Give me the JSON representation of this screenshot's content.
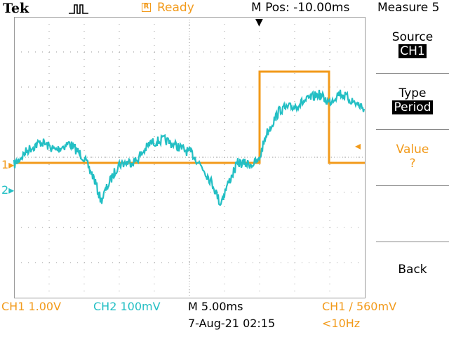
{
  "header": {
    "brand": "Tek",
    "trigger_icon": "pulse-trigger-icon",
    "acq_state_icon": "R",
    "acq_state": "Ready",
    "mpos": "M Pos: -10.00ms",
    "menu_title": "Measure 5"
  },
  "menu": {
    "items": [
      {
        "label": "Source",
        "value": "CH1",
        "value_style": "boxed"
      },
      {
        "label": "Type",
        "value": "Period",
        "value_style": "boxed"
      },
      {
        "label": "Value",
        "value": "?",
        "value_style": "orange"
      },
      {
        "label": "",
        "value": "",
        "value_style": "none"
      },
      {
        "label": "Back",
        "value": "",
        "value_style": "none"
      }
    ]
  },
  "markers": {
    "ch1": "1",
    "ch2": "2"
  },
  "status": {
    "ch1_scale": "CH1  1.00V",
    "ch2_scale": "CH2  100mV",
    "timebase": "M 5.00ms",
    "date": "7-Aug-21 02:15",
    "trigger": "CH1 ∕ 560mV",
    "freq": "<10Hz"
  },
  "colors": {
    "ch1": "#f29a1a",
    "ch2": "#23bfc4",
    "grid": "#9a9a9a"
  }
}
